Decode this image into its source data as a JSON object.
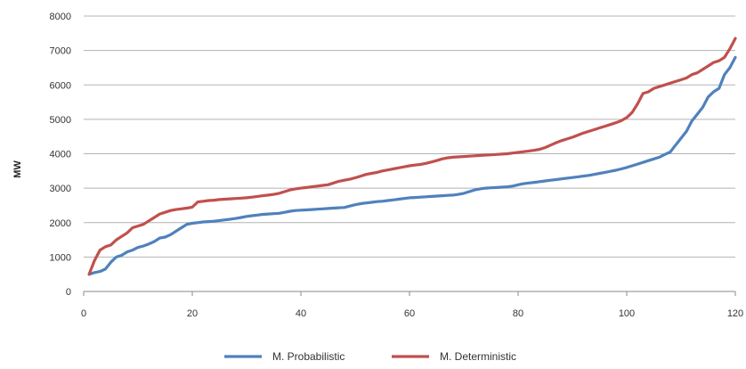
{
  "chart_data": {
    "type": "line",
    "title": "",
    "xlabel": "",
    "ylabel": "MW",
    "xlim": [
      0,
      120
    ],
    "ylim": [
      0,
      8000
    ],
    "xticks": [
      0,
      20,
      40,
      60,
      80,
      100,
      120
    ],
    "yticks": [
      0,
      1000,
      2000,
      3000,
      4000,
      5000,
      6000,
      7000,
      8000
    ],
    "grid": "horizontal",
    "legend_position": "bottom",
    "colors": {
      "probabilistic": "#4f81bd",
      "deterministic": "#c0504d",
      "grid": "#b3b3b3",
      "axis": "#888888"
    },
    "series": [
      {
        "name": "M. Probabilistic",
        "color": "#4f81bd",
        "x": [
          1,
          2,
          3,
          4,
          5,
          6,
          7,
          8,
          9,
          10,
          11,
          12,
          13,
          14,
          15,
          16,
          17,
          18,
          19,
          20,
          21,
          22,
          23,
          24,
          25,
          26,
          27,
          28,
          29,
          30,
          31,
          32,
          33,
          34,
          35,
          36,
          37,
          38,
          39,
          40,
          41,
          42,
          43,
          44,
          45,
          46,
          47,
          48,
          49,
          50,
          51,
          52,
          53,
          54,
          55,
          56,
          57,
          58,
          59,
          60,
          61,
          62,
          63,
          64,
          65,
          66,
          67,
          68,
          69,
          70,
          71,
          72,
          73,
          74,
          75,
          76,
          77,
          78,
          79,
          80,
          81,
          82,
          83,
          84,
          85,
          86,
          87,
          88,
          89,
          90,
          91,
          92,
          93,
          94,
          95,
          96,
          97,
          98,
          99,
          100,
          101,
          102,
          103,
          104,
          105,
          106,
          107,
          108,
          109,
          110,
          111,
          112,
          113,
          114,
          115,
          116,
          117,
          118,
          119,
          120
        ],
        "values": [
          500,
          550,
          580,
          650,
          850,
          1000,
          1050,
          1150,
          1200,
          1280,
          1320,
          1380,
          1450,
          1550,
          1580,
          1650,
          1750,
          1850,
          1950,
          1980,
          2000,
          2020,
          2030,
          2040,
          2060,
          2080,
          2100,
          2120,
          2150,
          2180,
          2200,
          2220,
          2240,
          2250,
          2260,
          2270,
          2300,
          2330,
          2350,
          2360,
          2370,
          2380,
          2390,
          2400,
          2410,
          2420,
          2430,
          2440,
          2480,
          2520,
          2550,
          2570,
          2590,
          2610,
          2620,
          2640,
          2660,
          2680,
          2700,
          2720,
          2730,
          2740,
          2750,
          2760,
          2770,
          2780,
          2790,
          2800,
          2820,
          2850,
          2900,
          2950,
          2980,
          3000,
          3010,
          3020,
          3030,
          3040,
          3060,
          3100,
          3130,
          3150,
          3170,
          3190,
          3210,
          3230,
          3250,
          3270,
          3290,
          3310,
          3330,
          3350,
          3370,
          3400,
          3430,
          3460,
          3490,
          3520,
          3560,
          3600,
          3650,
          3700,
          3750,
          3800,
          3850,
          3900,
          3980,
          4050,
          4250,
          4450,
          4650,
          4950,
          5150,
          5350,
          5650,
          5800,
          5900,
          6300,
          6500,
          6800
        ]
      },
      {
        "name": "M. Deterministic",
        "color": "#c0504d",
        "x": [
          1,
          2,
          3,
          4,
          5,
          6,
          7,
          8,
          9,
          10,
          11,
          12,
          13,
          14,
          15,
          16,
          17,
          18,
          19,
          20,
          21,
          22,
          23,
          24,
          25,
          26,
          27,
          28,
          29,
          30,
          31,
          32,
          33,
          34,
          35,
          36,
          37,
          38,
          39,
          40,
          41,
          42,
          43,
          44,
          45,
          46,
          47,
          48,
          49,
          50,
          51,
          52,
          53,
          54,
          55,
          56,
          57,
          58,
          59,
          60,
          61,
          62,
          63,
          64,
          65,
          66,
          67,
          68,
          69,
          70,
          71,
          72,
          73,
          74,
          75,
          76,
          77,
          78,
          79,
          80,
          81,
          82,
          83,
          84,
          85,
          86,
          87,
          88,
          89,
          90,
          91,
          92,
          93,
          94,
          95,
          96,
          97,
          98,
          99,
          100,
          101,
          102,
          103,
          104,
          105,
          106,
          107,
          108,
          109,
          110,
          111,
          112,
          113,
          114,
          115,
          116,
          117,
          118,
          119,
          120
        ],
        "values": [
          500,
          900,
          1200,
          1300,
          1350,
          1500,
          1600,
          1700,
          1850,
          1900,
          1950,
          2050,
          2150,
          2250,
          2300,
          2350,
          2380,
          2400,
          2420,
          2450,
          2600,
          2620,
          2640,
          2650,
          2670,
          2680,
          2690,
          2700,
          2710,
          2720,
          2740,
          2760,
          2780,
          2800,
          2820,
          2850,
          2900,
          2950,
          2980,
          3000,
          3020,
          3040,
          3060,
          3080,
          3100,
          3150,
          3200,
          3230,
          3260,
          3300,
          3350,
          3400,
          3430,
          3460,
          3500,
          3530,
          3560,
          3590,
          3620,
          3650,
          3670,
          3690,
          3720,
          3760,
          3800,
          3850,
          3880,
          3900,
          3910,
          3920,
          3930,
          3940,
          3950,
          3960,
          3970,
          3980,
          3990,
          4000,
          4020,
          4040,
          4060,
          4080,
          4100,
          4130,
          4180,
          4250,
          4320,
          4380,
          4430,
          4480,
          4540,
          4600,
          4650,
          4700,
          4750,
          4800,
          4850,
          4900,
          4960,
          5050,
          5200,
          5450,
          5750,
          5800,
          5900,
          5950,
          6000,
          6050,
          6100,
          6150,
          6200,
          6300,
          6350,
          6450,
          6550,
          6650,
          6700,
          6800,
          7050,
          7350
        ]
      }
    ]
  }
}
